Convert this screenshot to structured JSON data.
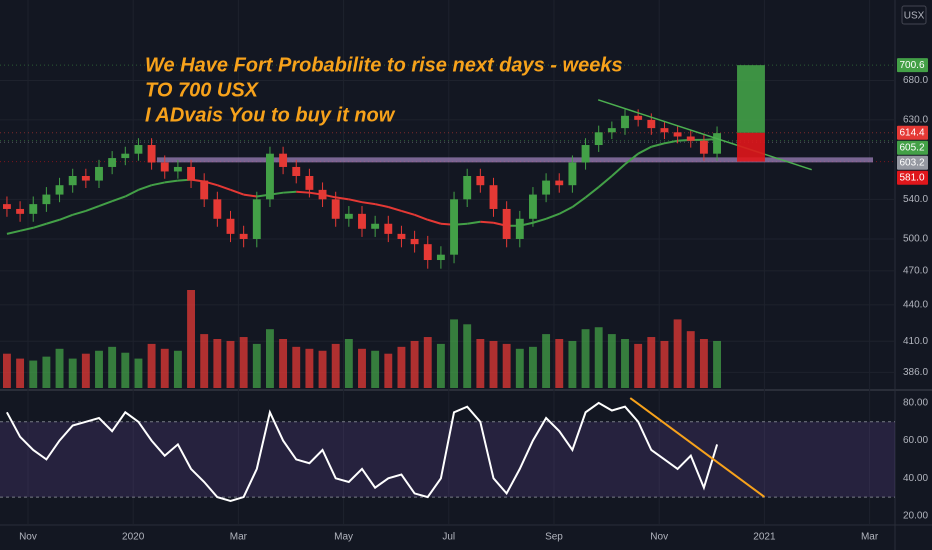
{
  "chart_data": {
    "type": "candlestick",
    "currency": "USX",
    "annotation": [
      "We Have Fort Probabilite to rise next days - weeks",
      "TO 700 USX",
      "I ADvais You to buy it now"
    ],
    "log_scale": true,
    "grid": true,
    "up_color": "#43a047",
    "down_color": "#e53935",
    "xlim": [
      0.468,
      17.483
    ],
    "xticks": [
      {
        "value": 1,
        "label": "Nov"
      },
      {
        "value": 3,
        "label": "2020"
      },
      {
        "value": 5,
        "label": "Mar"
      },
      {
        "value": 7,
        "label": "May"
      },
      {
        "value": 9,
        "label": "Jul"
      },
      {
        "value": 11,
        "label": "Sep"
      },
      {
        "value": 13,
        "label": "Nov"
      },
      {
        "value": 15,
        "label": "2021"
      },
      {
        "value": 17,
        "label": "Mar"
      }
    ],
    "ylim": [
      373,
      795
    ],
    "yticks": [
      {
        "value": 680,
        "label": "680.0"
      },
      {
        "value": 630,
        "label": "630.0"
      },
      {
        "value": 540,
        "label": "540.0"
      },
      {
        "value": 500,
        "label": "500.0"
      },
      {
        "value": 470,
        "label": "470.0"
      },
      {
        "value": 440,
        "label": "440.0"
      },
      {
        "value": 410,
        "label": "410.0"
      },
      {
        "value": 386,
        "label": "386.0"
      }
    ],
    "x": [
      0.6,
      0.85,
      1.1,
      1.35,
      1.6,
      1.85,
      2.1,
      2.35,
      2.6,
      2.85,
      3.1,
      3.35,
      3.6,
      3.85,
      4.1,
      4.35,
      4.6,
      4.85,
      5.1,
      5.35,
      5.6,
      5.85,
      6.1,
      6.35,
      6.6,
      6.85,
      7.1,
      7.35,
      7.6,
      7.85,
      8.1,
      8.35,
      8.6,
      8.85,
      9.1,
      9.35,
      9.6,
      9.85,
      10.1,
      10.35,
      10.6,
      10.85,
      11.1,
      11.35,
      11.6,
      11.85,
      12.1,
      12.35,
      12.6,
      12.85,
      13.1,
      13.35,
      13.6,
      13.85,
      14.1
    ],
    "open": [
      535,
      530,
      525,
      535,
      545,
      555,
      565,
      560,
      575,
      585,
      590,
      600,
      580,
      570,
      575,
      560,
      540,
      520,
      505,
      500,
      540,
      590,
      575,
      565,
      550,
      540,
      520,
      525,
      510,
      515,
      505,
      500,
      495,
      480,
      485,
      540,
      565,
      555,
      530,
      500,
      520,
      545,
      560,
      555,
      580,
      600,
      615,
      620,
      635,
      630,
      620,
      615,
      610,
      605,
      590
    ],
    "high": [
      543,
      538,
      543,
      553,
      563,
      573,
      573,
      583,
      593,
      598,
      608,
      608,
      588,
      583,
      583,
      568,
      548,
      528,
      513,
      548,
      598,
      598,
      583,
      573,
      558,
      548,
      533,
      533,
      523,
      523,
      513,
      508,
      503,
      493,
      548,
      573,
      573,
      563,
      538,
      528,
      553,
      568,
      568,
      588,
      608,
      623,
      628,
      643,
      643,
      638,
      628,
      623,
      618,
      613,
      622
    ],
    "low": [
      522,
      517,
      517,
      527,
      537,
      547,
      552,
      552,
      567,
      577,
      582,
      572,
      562,
      562,
      552,
      532,
      512,
      497,
      492,
      492,
      532,
      567,
      557,
      542,
      532,
      512,
      512,
      502,
      502,
      497,
      492,
      487,
      472,
      472,
      477,
      532,
      547,
      522,
      492,
      492,
      512,
      537,
      547,
      547,
      572,
      592,
      607,
      612,
      622,
      612,
      607,
      602,
      597,
      582,
      582
    ],
    "close": [
      530,
      525,
      535,
      545,
      555,
      565,
      560,
      575,
      585,
      590,
      600,
      580,
      570,
      575,
      560,
      540,
      520,
      505,
      500,
      540,
      590,
      575,
      565,
      550,
      540,
      520,
      525,
      510,
      515,
      505,
      500,
      495,
      480,
      485,
      540,
      565,
      555,
      530,
      500,
      520,
      545,
      560,
      555,
      580,
      600,
      615,
      620,
      635,
      630,
      620,
      615,
      610,
      605,
      590,
      614
    ],
    "ma": [
      505,
      508,
      511,
      515,
      519,
      524,
      528,
      533,
      538,
      543,
      550,
      555,
      558,
      560,
      561,
      559,
      555,
      550,
      545,
      543,
      545,
      547,
      548,
      547,
      545,
      542,
      540,
      537,
      535,
      532,
      528,
      524,
      519,
      515,
      514,
      515,
      517,
      516,
      513,
      513,
      516,
      520,
      525,
      532,
      542,
      553,
      565,
      578,
      590,
      598,
      602,
      605,
      606,
      606,
      607
    ],
    "volume": [
      35,
      30,
      28,
      32,
      40,
      30,
      35,
      38,
      42,
      36,
      30,
      45,
      40,
      38,
      100,
      55,
      50,
      48,
      52,
      45,
      60,
      50,
      42,
      40,
      38,
      45,
      50,
      40,
      38,
      35,
      42,
      48,
      52,
      45,
      70,
      65,
      50,
      48,
      45,
      40,
      42,
      55,
      50,
      48,
      60,
      62,
      55,
      50,
      45,
      52,
      48,
      70,
      58,
      50,
      48
    ],
    "volume_lim": [
      0,
      100
    ],
    "support_level": 583,
    "support_color": "#9c7fb8",
    "trendline": {
      "x": [
        11.84,
        15.9
      ],
      "values": [
        655,
        572
      ],
      "color": "#4caf50"
    },
    "position": {
      "x": [
        14.48,
        15.01
      ],
      "entry": 614.4,
      "target": 700.6,
      "stop": 581.0,
      "target_color": "#43a047",
      "stop_color": "#e0161b"
    },
    "price_labels": [
      {
        "value": 700.6,
        "label": "700.6",
        "color": "#43a047"
      },
      {
        "value": 614.4,
        "label": "614.4",
        "color": "#e53935"
      },
      {
        "value": 605.2,
        "label": "605.2",
        "color": "#43a047"
      },
      {
        "value": 603.2,
        "label": "603.2",
        "color": "#9598a1"
      },
      {
        "value": 581.0,
        "label": "581.0",
        "color": "#e0161b"
      }
    ],
    "rsi": {
      "ylim": [
        15.2,
        85.8
      ],
      "yticks": [
        {
          "value": 80,
          "label": "80.00"
        },
        {
          "value": 60,
          "label": "60.00"
        },
        {
          "value": 40,
          "label": "40.00"
        },
        {
          "value": 20,
          "label": "20.00"
        }
      ],
      "bands": [
        30,
        70
      ],
      "color": "#ffffff",
      "values": [
        75,
        62,
        55,
        50,
        60,
        68,
        70,
        72,
        65,
        75,
        70,
        60,
        52,
        58,
        45,
        38,
        30,
        28,
        30,
        45,
        75,
        60,
        50,
        48,
        55,
        40,
        38,
        45,
        35,
        40,
        42,
        32,
        30,
        40,
        75,
        78,
        70,
        40,
        32,
        45,
        60,
        72,
        65,
        55,
        75,
        80,
        76,
        78,
        70,
        55,
        50,
        45,
        52,
        35,
        58
      ],
      "trendline": {
        "x": [
          12.45,
          15.0
        ],
        "values": [
          82.6,
          30.1
        ],
        "color": "#f7a21b"
      }
    }
  }
}
